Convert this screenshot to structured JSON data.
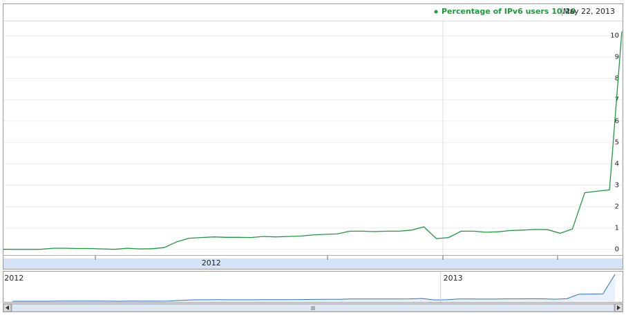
{
  "chart_data": {
    "type": "line",
    "series": [
      {
        "name": "Percentage of IPv6 users",
        "color": "#1a9a3a",
        "values": [
          0.0,
          0.0,
          0.0,
          0.0,
          0.05,
          0.05,
          0.04,
          0.04,
          0.02,
          0.0,
          0.05,
          0.02,
          0.03,
          0.08,
          0.35,
          0.52,
          0.55,
          0.58,
          0.56,
          0.56,
          0.55,
          0.6,
          0.58,
          0.6,
          0.62,
          0.67,
          0.7,
          0.72,
          0.85,
          0.85,
          0.83,
          0.85,
          0.85,
          0.9,
          1.05,
          0.5,
          0.55,
          0.85,
          0.85,
          0.8,
          0.82,
          0.88,
          0.9,
          0.93,
          0.92,
          0.75,
          0.95,
          2.65,
          2.72,
          2.78,
          10.2
        ]
      }
    ],
    "latest": {
      "value": 10.2,
      "label": "10.20",
      "date": "May 22, 2013"
    },
    "ylim": [
      -0.3,
      10.7
    ],
    "yticks": [
      0,
      1,
      2,
      3,
      4,
      5,
      6,
      7,
      8,
      9,
      10
    ],
    "grid": true,
    "xlim": [
      0,
      50
    ],
    "xticks": [
      7.43,
      26.2,
      35.53,
      44.8
    ],
    "xlabels": [
      {
        "value": 16.8,
        "label": "2012"
      }
    ],
    "navigator": {
      "color": "#2f6fd0",
      "labels": [
        {
          "value": -0.9,
          "label": "2012"
        },
        {
          "value": 35.53,
          "label": "2013"
        }
      ]
    }
  }
}
